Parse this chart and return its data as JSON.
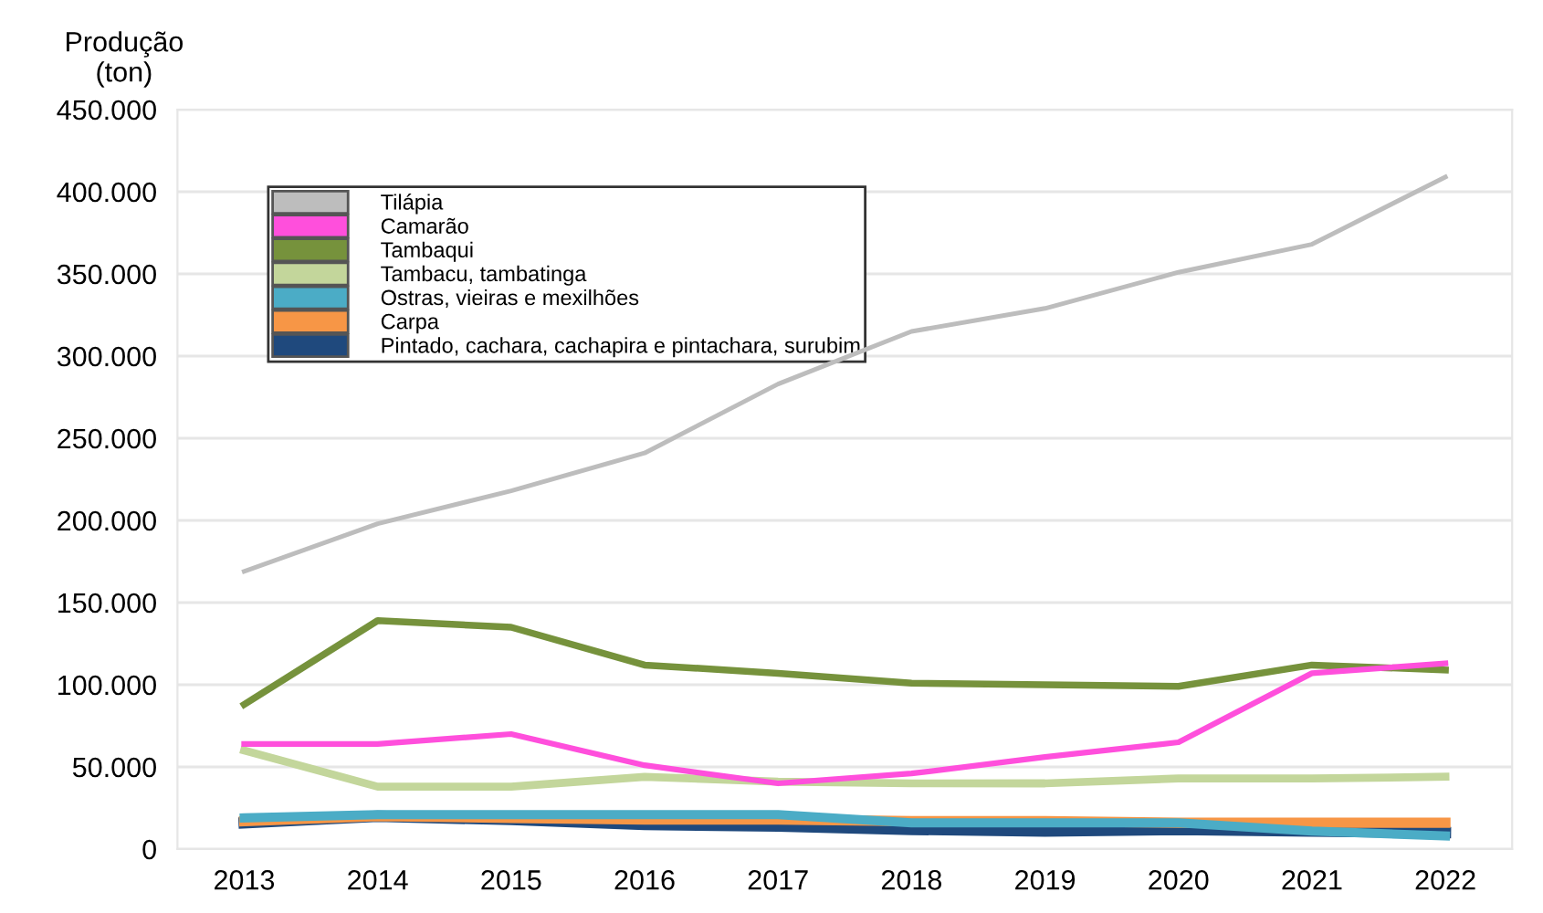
{
  "chart_data": {
    "type": "line",
    "ylabel": "Produção\n(ton)",
    "categories": [
      "2013",
      "2014",
      "2015",
      "2016",
      "2017",
      "2018",
      "2019",
      "2020",
      "2021",
      "2022"
    ],
    "ylim": [
      0,
      450000
    ],
    "yticks": [
      0,
      {
        "value": 50000,
        "label": "50.000"
      },
      {
        "value": 100000,
        "label": "100.000"
      },
      {
        "value": 150000,
        "label": "150.000"
      },
      {
        "value": 200000,
        "label": "200.000"
      },
      {
        "value": 250000,
        "label": "250.000"
      },
      {
        "value": 300000,
        "label": "300.000"
      },
      {
        "value": 350000,
        "label": "350.000"
      },
      {
        "value": 400000,
        "label": "400.000"
      },
      {
        "value": 450000,
        "label": "450.000"
      }
    ],
    "grid": "y",
    "legend": "top left",
    "marker": "none",
    "line_style": "solid",
    "series": [
      {
        "name": "Tilápia",
        "color": "#bdbdbd",
        "values": [
          169000,
          198000,
          218000,
          241000,
          283000,
          315000,
          329000,
          351000,
          368000,
          409000
        ]
      },
      {
        "name": "Camarão",
        "color": "#ff4fdc",
        "values": [
          64000,
          64000,
          70000,
          51000,
          40000,
          46000,
          56000,
          65000,
          107000,
          113000
        ]
      },
      {
        "name": "Tambaqui",
        "color": "#76923c",
        "values": [
          88000,
          139000,
          135000,
          112000,
          107000,
          101000,
          100000,
          99000,
          112000,
          109000
        ]
      },
      {
        "name": "Tambacu, tambatinga",
        "color": "#c3d69b",
        "values": [
          60000,
          38000,
          38000,
          44000,
          41000,
          40000,
          40000,
          43000,
          43000,
          44000
        ]
      },
      {
        "name": "Ostras, vieiras e mexilhões",
        "color": "#4bacc6",
        "values": [
          19000,
          21000,
          21000,
          21000,
          21000,
          16000,
          16000,
          16000,
          11000,
          8000
        ]
      },
      {
        "name": "Carpa",
        "color": "#f79646",
        "values": [
          17000,
          20000,
          19000,
          18000,
          18000,
          17000,
          17000,
          16000,
          16000,
          16000
        ]
      },
      {
        "name": "Pintado, cachara, cachapira e pintachara, surubim",
        "color": "#1f497d",
        "values": [
          16000,
          20000,
          18000,
          15000,
          14000,
          12000,
          11000,
          12000,
          11000,
          10000
        ]
      }
    ]
  }
}
